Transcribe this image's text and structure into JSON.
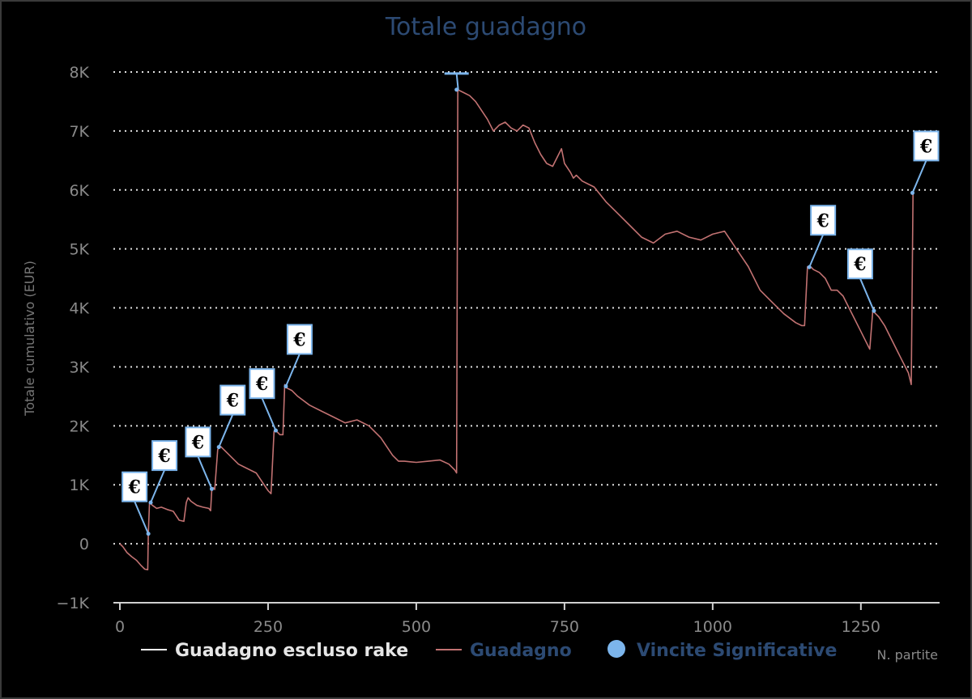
{
  "chart_data": {
    "type": "line",
    "title": "Totale guadagno",
    "xlabel": "N. partite",
    "ylabel": "Totale cumulativo (EUR)",
    "xlim": [
      0,
      1350
    ],
    "ylim": [
      -1000,
      8000
    ],
    "x_ticks": [
      {
        "value": 0,
        "label": "0"
      },
      {
        "value": 250,
        "label": "250"
      },
      {
        "value": 500,
        "label": "500"
      },
      {
        "value": 750,
        "label": "750"
      },
      {
        "value": 1000,
        "label": "1000"
      },
      {
        "value": 1250,
        "label": "1250"
      }
    ],
    "y_ticks": [
      {
        "value": -1000,
        "label": "−1K"
      },
      {
        "value": 0,
        "label": "0"
      },
      {
        "value": 1000,
        "label": "1K"
      },
      {
        "value": 2000,
        "label": "2K"
      },
      {
        "value": 3000,
        "label": "3K"
      },
      {
        "value": 4000,
        "label": "4K"
      },
      {
        "value": 5000,
        "label": "5K"
      },
      {
        "value": 6000,
        "label": "6K"
      },
      {
        "value": 7000,
        "label": "7K"
      },
      {
        "value": 8000,
        "label": "8K"
      }
    ],
    "grid": true,
    "legend_position": "bottom",
    "series": [
      {
        "name": "Guadagno escluso rake",
        "color": "#ffffff",
        "x": [],
        "y": []
      },
      {
        "name": "Guadagno",
        "color": "#c27272",
        "x": [
          0,
          5,
          12,
          20,
          28,
          35,
          42,
          47,
          48,
          50,
          55,
          62,
          70,
          80,
          90,
          100,
          108,
          112,
          115,
          120,
          130,
          140,
          150,
          153,
          155,
          158,
          160,
          165,
          170,
          180,
          190,
          200,
          210,
          220,
          230,
          240,
          250,
          255,
          260,
          262,
          265,
          270,
          275,
          278,
          280,
          290,
          300,
          320,
          340,
          360,
          380,
          400,
          420,
          440,
          460,
          470,
          480,
          500,
          520,
          540,
          555,
          565,
          568,
          570,
          580,
          590,
          600,
          620,
          630,
          640,
          650,
          660,
          670,
          680,
          690,
          700,
          710,
          720,
          730,
          740,
          745,
          750,
          760,
          765,
          770,
          780,
          790,
          800,
          820,
          840,
          860,
          880,
          900,
          920,
          940,
          960,
          980,
          1000,
          1020,
          1040,
          1060,
          1080,
          1100,
          1120,
          1140,
          1150,
          1155,
          1160,
          1165,
          1170,
          1180,
          1190,
          1200,
          1210,
          1220,
          1230,
          1240,
          1250,
          1260,
          1265,
          1270,
          1275,
          1280,
          1290,
          1300,
          1310,
          1320,
          1330,
          1335,
          1338
        ],
        "y": [
          0,
          -50,
          -150,
          -220,
          -280,
          -360,
          -430,
          -440,
          170,
          700,
          650,
          600,
          620,
          580,
          550,
          400,
          380,
          700,
          780,
          720,
          650,
          620,
          600,
          560,
          900,
          950,
          920,
          1600,
          1650,
          1550,
          1450,
          1350,
          1300,
          1250,
          1200,
          1050,
          900,
          850,
          1900,
          1950,
          1900,
          1850,
          1850,
          2700,
          2650,
          2600,
          2500,
          2350,
          2250,
          2150,
          2050,
          2100,
          2000,
          1800,
          1500,
          1400,
          1400,
          1380,
          1400,
          1420,
          1350,
          1250,
          1200,
          7700,
          7650,
          7600,
          7500,
          7200,
          7000,
          7100,
          7150,
          7050,
          7000,
          7100,
          7050,
          6800,
          6600,
          6450,
          6400,
          6600,
          6700,
          6450,
          6300,
          6200,
          6250,
          6150,
          6100,
          6050,
          5800,
          5600,
          5400,
          5200,
          5100,
          5250,
          5300,
          5200,
          5150,
          5250,
          5300,
          5000,
          4700,
          4300,
          4100,
          3900,
          3750,
          3700,
          3700,
          4700,
          4700,
          4650,
          4600,
          4500,
          4300,
          4300,
          4200,
          4000,
          3800,
          3600,
          3400,
          3300,
          3950,
          3900,
          3850,
          3700,
          3500,
          3300,
          3100,
          2900,
          2700,
          5950
        ]
      }
    ],
    "markers": {
      "name": "Vincite Significative",
      "color": "#7cb5ec",
      "symbol": "€",
      "points": [
        {
          "x": 48,
          "y": 170
        },
        {
          "x": 52,
          "y": 700
        },
        {
          "x": 155,
          "y": 930
        },
        {
          "x": 167,
          "y": 1640
        },
        {
          "x": 263,
          "y": 1920
        },
        {
          "x": 280,
          "y": 2670
        },
        {
          "x": 568,
          "y": 7700
        },
        {
          "x": 1163,
          "y": 4690
        },
        {
          "x": 1272,
          "y": 3950
        },
        {
          "x": 1337,
          "y": 5950
        }
      ]
    }
  }
}
